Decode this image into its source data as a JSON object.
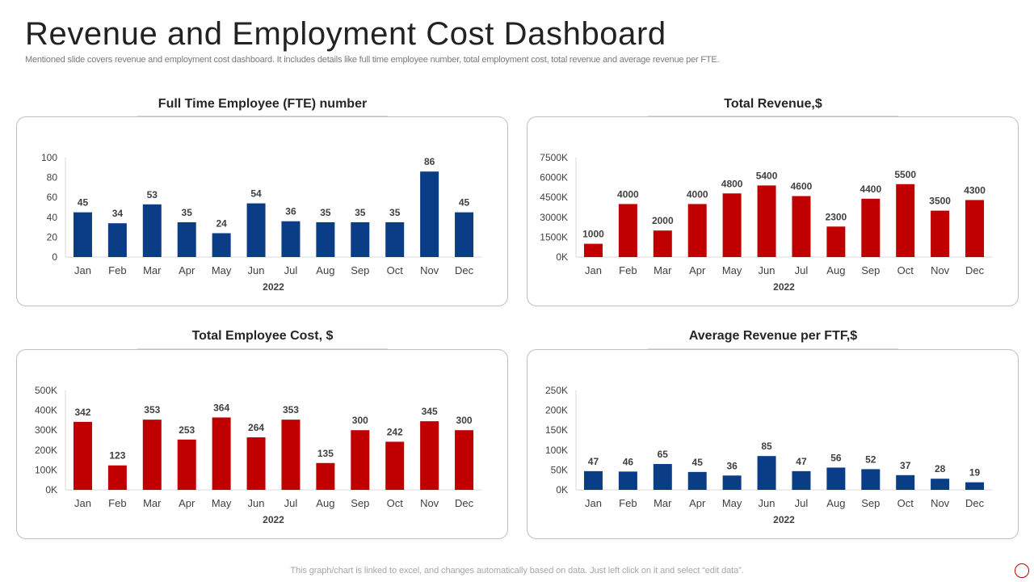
{
  "page": {
    "title": "Revenue and Employment Cost Dashboard",
    "subtitle": "Mentioned slide covers revenue and employment cost dashboard. It includes details like full time employee number, total employment cost, total revenue and average revenue per FTE.",
    "footer_note": "This graph/chart is linked to excel,  and changes automatically based on data. Just left click on it and select “edit data”."
  },
  "colors": {
    "blue": "#0b3d86",
    "red": "#c00000",
    "axis": "#d9d9d9",
    "border": "#bfbfbf"
  },
  "chart_data": [
    {
      "type": "bar",
      "title": "Full Time Employee (FTE) number",
      "xlabel": "2022",
      "ylabel": "",
      "color": "#0b3d86",
      "categories": [
        "Jan",
        "Feb",
        "Mar",
        "Apr",
        "May",
        "Jun",
        "Jul",
        "Aug",
        "Sep",
        "Oct",
        "Nov",
        "Dec"
      ],
      "values": [
        45,
        34,
        53,
        35,
        24,
        54,
        36,
        35,
        35,
        35,
        86,
        45
      ],
      "value_labels": [
        "45",
        "34",
        "53",
        "35",
        "24",
        "54",
        "36",
        "35",
        "35",
        "35",
        "86",
        "45"
      ],
      "yticks": [
        0,
        20,
        40,
        60,
        80,
        100
      ],
      "ytick_labels": [
        "0",
        "20",
        "40",
        "60",
        "80",
        "100"
      ],
      "ylim": [
        0,
        100
      ]
    },
    {
      "type": "bar",
      "title": "Total Revenue,$",
      "xlabel": "2022",
      "ylabel": "",
      "color": "#c00000",
      "categories": [
        "Jan",
        "Feb",
        "Mar",
        "Apr",
        "May",
        "Jun",
        "Jul",
        "Aug",
        "Sep",
        "Oct",
        "Nov",
        "Dec"
      ],
      "values": [
        1000,
        4000,
        2000,
        4000,
        4800,
        5400,
        4600,
        2300,
        4400,
        5500,
        3500,
        4300
      ],
      "value_labels": [
        "1000",
        "4000",
        "2000",
        "4000",
        "4800",
        "5400",
        "4600",
        "2300",
        "4400",
        "5500",
        "3500",
        "4300"
      ],
      "yticks": [
        0,
        1500,
        3000,
        4500,
        6000,
        7500
      ],
      "ytick_labels": [
        "0K",
        "1500K",
        "3000K",
        "4500K",
        "6000K",
        "7500K"
      ],
      "ylim": [
        0,
        7500
      ]
    },
    {
      "type": "bar",
      "title": "Total Employee Cost,  $",
      "xlabel": "2022",
      "ylabel": "",
      "color": "#c00000",
      "categories": [
        "Jan",
        "Feb",
        "Mar",
        "Apr",
        "May",
        "Jun",
        "Jul",
        "Aug",
        "Sep",
        "Oct",
        "Nov",
        "Dec"
      ],
      "values": [
        342,
        123,
        353,
        253,
        364,
        264,
        353,
        135,
        300,
        242,
        345,
        300
      ],
      "value_labels": [
        "342",
        "123",
        "353",
        "253",
        "364",
        "264",
        "353",
        "135",
        "300",
        "242",
        "345",
        "300"
      ],
      "yticks": [
        0,
        100,
        200,
        300,
        400,
        500
      ],
      "ytick_labels": [
        "0K",
        "100K",
        "200K",
        "300K",
        "400K",
        "500K"
      ],
      "ylim": [
        0,
        500
      ]
    },
    {
      "type": "bar",
      "title": "Average Revenue per FTF,$",
      "xlabel": "2022",
      "ylabel": "",
      "color": "#0b3d86",
      "categories": [
        "Jan",
        "Feb",
        "Mar",
        "Apr",
        "May",
        "Jun",
        "Jul",
        "Aug",
        "Sep",
        "Oct",
        "Nov",
        "Dec"
      ],
      "values": [
        47,
        46,
        65,
        45,
        36,
        85,
        47,
        56,
        52,
        37,
        28,
        19
      ],
      "value_labels": [
        "47",
        "46",
        "65",
        "45",
        "36",
        "85",
        "47",
        "56",
        "52",
        "37",
        "28",
        "19"
      ],
      "yticks": [
        0,
        50,
        100,
        150,
        200,
        250
      ],
      "ytick_labels": [
        "0K",
        "50K",
        "100K",
        "150K",
        "200K",
        "250K"
      ],
      "ylim": [
        0,
        250
      ]
    }
  ]
}
